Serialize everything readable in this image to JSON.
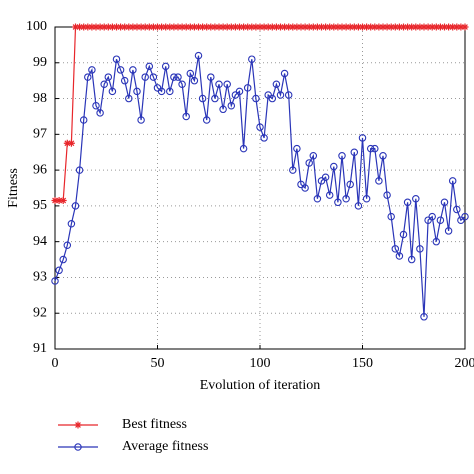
{
  "chart_data": {
    "type": "line",
    "xlabel": "Evolution of iteration",
    "ylabel": "Fitness",
    "x": [
      0,
      2,
      4,
      6,
      8,
      10,
      12,
      14,
      16,
      18,
      20,
      22,
      24,
      26,
      28,
      30,
      32,
      34,
      36,
      38,
      40,
      42,
      44,
      46,
      48,
      50,
      52,
      54,
      56,
      58,
      60,
      62,
      64,
      66,
      68,
      70,
      72,
      74,
      76,
      78,
      80,
      82,
      84,
      86,
      88,
      90,
      92,
      94,
      96,
      98,
      100,
      102,
      104,
      106,
      108,
      110,
      112,
      114,
      116,
      118,
      120,
      122,
      124,
      126,
      128,
      130,
      132,
      134,
      136,
      138,
      140,
      142,
      144,
      146,
      148,
      150,
      152,
      154,
      156,
      158,
      160,
      162,
      164,
      166,
      168,
      170,
      172,
      174,
      176,
      178,
      180,
      182,
      184,
      186,
      188,
      190,
      192,
      194,
      196,
      198,
      200
    ],
    "series": [
      {
        "name": "Best fitness",
        "color": "#e8262b",
        "marker": "star",
        "values": [
          95.15,
          95.15,
          95.15,
          96.75,
          96.75,
          100,
          100,
          100,
          100,
          100,
          100,
          100,
          100,
          100,
          100,
          100,
          100,
          100,
          100,
          100,
          100,
          100,
          100,
          100,
          100,
          100,
          100,
          100,
          100,
          100,
          100,
          100,
          100,
          100,
          100,
          100,
          100,
          100,
          100,
          100,
          100,
          100,
          100,
          100,
          100,
          100,
          100,
          100,
          100,
          100,
          100,
          100,
          100,
          100,
          100,
          100,
          100,
          100,
          100,
          100,
          100,
          100,
          100,
          100,
          100,
          100,
          100,
          100,
          100,
          100,
          100,
          100,
          100,
          100,
          100,
          100,
          100,
          100,
          100,
          100,
          100,
          100,
          100,
          100,
          100,
          100,
          100,
          100,
          100,
          100,
          100,
          100,
          100,
          100,
          100,
          100,
          100,
          100,
          100,
          100,
          100
        ]
      },
      {
        "name": "Average fitness",
        "color": "#2a35b8",
        "marker": "circle",
        "values": [
          92.9,
          93.2,
          93.5,
          93.9,
          94.5,
          95.0,
          96.0,
          97.4,
          98.6,
          98.8,
          97.8,
          97.6,
          98.4,
          98.6,
          98.2,
          99.1,
          98.8,
          98.5,
          98.0,
          98.8,
          98.2,
          97.4,
          98.6,
          98.9,
          98.6,
          98.3,
          98.2,
          98.9,
          98.2,
          98.6,
          98.6,
          98.4,
          97.5,
          98.7,
          98.5,
          99.2,
          98.0,
          97.4,
          98.6,
          98.0,
          98.4,
          97.7,
          98.4,
          97.8,
          98.1,
          98.2,
          96.6,
          98.3,
          99.1,
          98.0,
          97.2,
          96.9,
          98.1,
          98.0,
          98.4,
          98.1,
          98.7,
          98.1,
          96.0,
          96.6,
          95.6,
          95.5,
          96.2,
          96.4,
          95.2,
          95.7,
          95.8,
          95.3,
          96.1,
          95.1,
          96.4,
          95.2,
          95.6,
          96.5,
          95.0,
          96.9,
          95.2,
          96.6,
          96.6,
          95.7,
          96.4,
          95.3,
          94.7,
          93.8,
          93.6,
          94.2,
          95.1,
          93.5,
          95.2,
          93.8,
          91.9,
          94.6,
          94.7,
          94.0,
          94.6,
          95.1,
          94.3,
          95.7,
          94.9,
          94.6,
          94.7
        ]
      }
    ],
    "xlim": [
      0,
      200
    ],
    "xticks": [
      0,
      50,
      100,
      150,
      200
    ],
    "ylim": [
      91,
      100
    ],
    "yticks": [
      91,
      92,
      93,
      94,
      95,
      96,
      97,
      98,
      99,
      100
    ],
    "grid": true,
    "legend": "bottom"
  }
}
